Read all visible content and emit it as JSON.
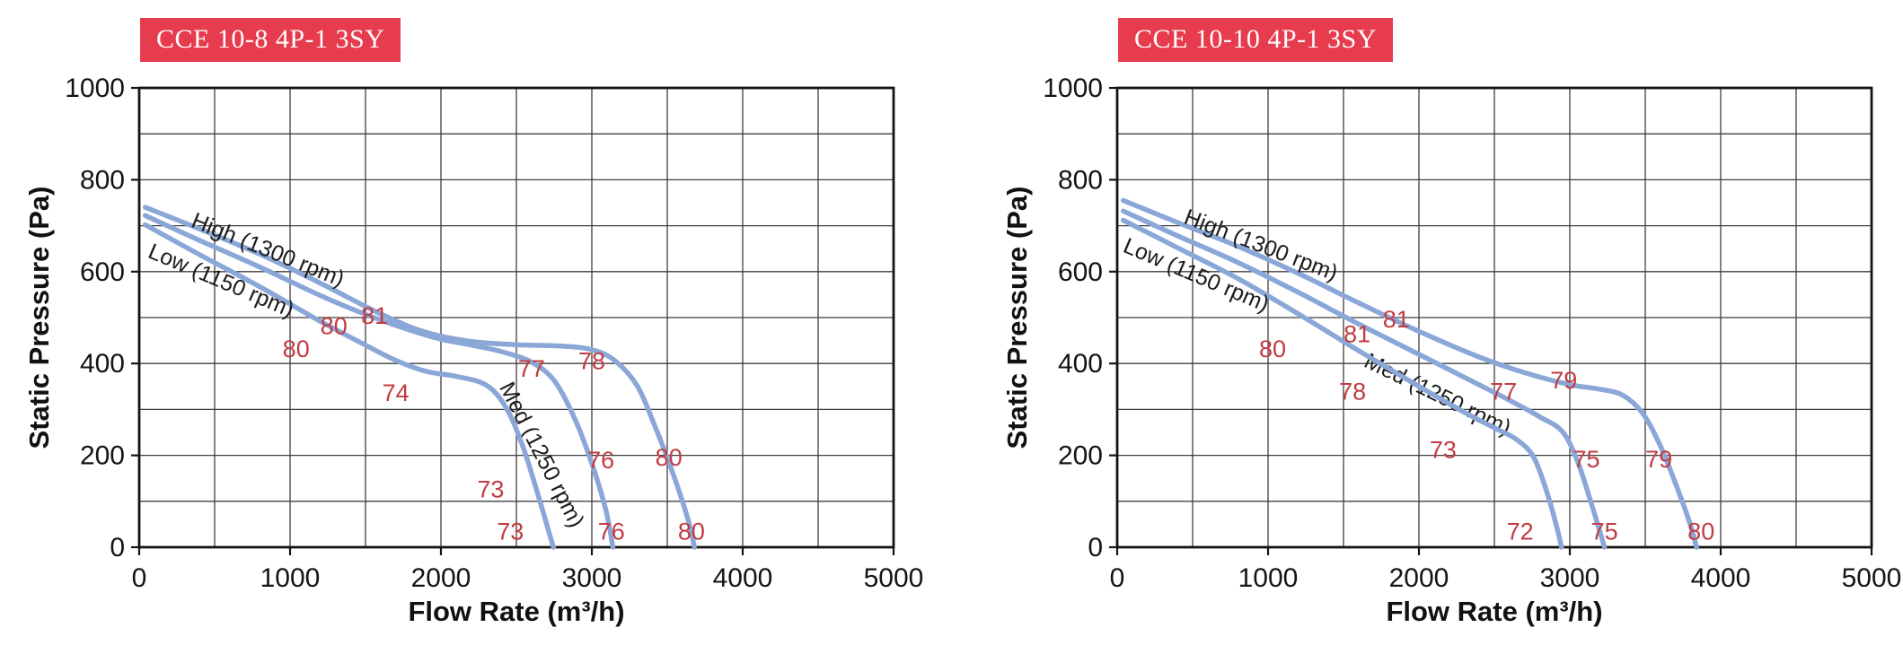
{
  "page": {
    "background": "#ffffff"
  },
  "colors": {
    "curve": "#8aa7d7",
    "annotation": "#c23b42",
    "badge_bg": "#e73b4e",
    "badge_text": "#ffffff",
    "grid": "#3f3f3f",
    "axis": "#141414"
  },
  "chart_data": [
    {
      "type": "line",
      "title": "CCE 10-8 4P-1 3SY",
      "xlabel": "Flow Rate (m³/h)",
      "ylabel": "Static Pressure (Pa)",
      "xlim": [
        0,
        5000
      ],
      "ylim": [
        0,
        1000
      ],
      "x_tick_step": 1000,
      "x_grid_step": 500,
      "y_tick_step": 200,
      "y_grid_step": 100,
      "series": [
        {
          "name": "High (1300 rpm)",
          "points": [
            [
              40,
              740
            ],
            [
              400,
              693
            ],
            [
              800,
              638
            ],
            [
              1200,
              575
            ],
            [
              1600,
              508
            ],
            [
              1900,
              468
            ],
            [
              2200,
              448
            ],
            [
              2500,
              441
            ],
            [
              2800,
              438
            ],
            [
              3000,
              430
            ],
            [
              3150,
              407
            ],
            [
              3300,
              352
            ],
            [
              3420,
              262
            ],
            [
              3530,
              168
            ],
            [
              3640,
              58
            ],
            [
              3680,
              0
            ]
          ],
          "label": {
            "x": 850,
            "y": 645,
            "rotate": 22
          }
        },
        {
          "name": "Med (1250 rpm)",
          "points": [
            [
              40,
              722
            ],
            [
              400,
              668
            ],
            [
              800,
              610
            ],
            [
              1200,
              548
            ],
            [
              1500,
              507
            ],
            [
              1800,
              472
            ],
            [
              2000,
              453
            ],
            [
              2200,
              440
            ],
            [
              2400,
              426
            ],
            [
              2600,
              403
            ],
            [
              2750,
              363
            ],
            [
              2880,
              285
            ],
            [
              2990,
              192
            ],
            [
              3090,
              85
            ],
            [
              3140,
              0
            ]
          ],
          "label": {
            "x": 2660,
            "y": 200,
            "rotate": 63
          }
        },
        {
          "name": "Low (1150 rpm)",
          "points": [
            [
              40,
              702
            ],
            [
              400,
              637
            ],
            [
              800,
              567
            ],
            [
              1200,
              492
            ],
            [
              1500,
              440
            ],
            [
              1700,
              407
            ],
            [
              1900,
              383
            ],
            [
              2100,
              372
            ],
            [
              2300,
              353
            ],
            [
              2430,
              305
            ],
            [
              2540,
              222
            ],
            [
              2640,
              118
            ],
            [
              2720,
              28
            ],
            [
              2745,
              0
            ]
          ],
          "label": {
            "x": 540,
            "y": 578,
            "rotate": 23
          }
        }
      ],
      "annotations": [
        {
          "text": "80",
          "x": 1290,
          "y": 478
        },
        {
          "text": "81",
          "x": 1560,
          "y": 500
        },
        {
          "text": "80",
          "x": 1040,
          "y": 428
        },
        {
          "text": "74",
          "x": 1700,
          "y": 332
        },
        {
          "text": "77",
          "x": 2600,
          "y": 385
        },
        {
          "text": "78",
          "x": 3000,
          "y": 402
        },
        {
          "text": "73",
          "x": 2330,
          "y": 122
        },
        {
          "text": "76",
          "x": 3060,
          "y": 186
        },
        {
          "text": "80",
          "x": 3510,
          "y": 192
        },
        {
          "text": "73",
          "x": 2460,
          "y": 30
        },
        {
          "text": "76",
          "x": 3130,
          "y": 30
        },
        {
          "text": "80",
          "x": 3660,
          "y": 30
        }
      ]
    },
    {
      "type": "line",
      "title": "CCE 10-10 4P-1 3SY",
      "xlabel": "Flow Rate (m³/h)",
      "ylabel": "Static Pressure (Pa)",
      "xlim": [
        0,
        5000
      ],
      "ylim": [
        0,
        1000
      ],
      "x_tick_step": 1000,
      "x_grid_step": 500,
      "y_tick_step": 200,
      "y_grid_step": 100,
      "series": [
        {
          "name": "High (1300 rpm)",
          "points": [
            [
              40,
              755
            ],
            [
              400,
              707
            ],
            [
              800,
              655
            ],
            [
              1200,
              596
            ],
            [
              1600,
              532
            ],
            [
              2000,
              470
            ],
            [
              2400,
              414
            ],
            [
              2700,
              380
            ],
            [
              3000,
              354
            ],
            [
              3200,
              344
            ],
            [
              3350,
              331
            ],
            [
              3480,
              293
            ],
            [
              3590,
              228
            ],
            [
              3690,
              148
            ],
            [
              3790,
              58
            ],
            [
              3840,
              0
            ]
          ],
          "label": {
            "x": 950,
            "y": 655,
            "rotate": 21
          }
        },
        {
          "name": "Med (1250 rpm)",
          "points": [
            [
              40,
              732
            ],
            [
              400,
              678
            ],
            [
              800,
              620
            ],
            [
              1200,
              555
            ],
            [
              1600,
              486
            ],
            [
              2000,
              420
            ],
            [
              2300,
              370
            ],
            [
              2600,
              320
            ],
            [
              2800,
              284
            ],
            [
              2950,
              252
            ],
            [
              3050,
              188
            ],
            [
              3140,
              98
            ],
            [
              3210,
              22
            ],
            [
              3230,
              0
            ]
          ],
          "label": {
            "x": 2120,
            "y": 330,
            "rotate": 26
          }
        },
        {
          "name": "Low (1150 rpm)",
          "points": [
            [
              40,
              712
            ],
            [
              400,
              652
            ],
            [
              800,
              585
            ],
            [
              1200,
              508
            ],
            [
              1600,
              428
            ],
            [
              2000,
              350
            ],
            [
              2300,
              294
            ],
            [
              2500,
              260
            ],
            [
              2650,
              234
            ],
            [
              2760,
              196
            ],
            [
              2850,
              118
            ],
            [
              2915,
              42
            ],
            [
              2945,
              0
            ]
          ],
          "label": {
            "x": 520,
            "y": 590,
            "rotate": 23
          }
        }
      ],
      "annotations": [
        {
          "text": "80",
          "x": 1030,
          "y": 428
        },
        {
          "text": "81",
          "x": 1590,
          "y": 460
        },
        {
          "text": "81",
          "x": 1850,
          "y": 492
        },
        {
          "text": "78",
          "x": 1560,
          "y": 335
        },
        {
          "text": "77",
          "x": 2560,
          "y": 335
        },
        {
          "text": "79",
          "x": 2960,
          "y": 360
        },
        {
          "text": "73",
          "x": 2160,
          "y": 208
        },
        {
          "text": "75",
          "x": 3110,
          "y": 188
        },
        {
          "text": "79",
          "x": 3590,
          "y": 188
        },
        {
          "text": "72",
          "x": 2670,
          "y": 30
        },
        {
          "text": "75",
          "x": 3230,
          "y": 30
        },
        {
          "text": "80",
          "x": 3870,
          "y": 30
        }
      ]
    }
  ]
}
